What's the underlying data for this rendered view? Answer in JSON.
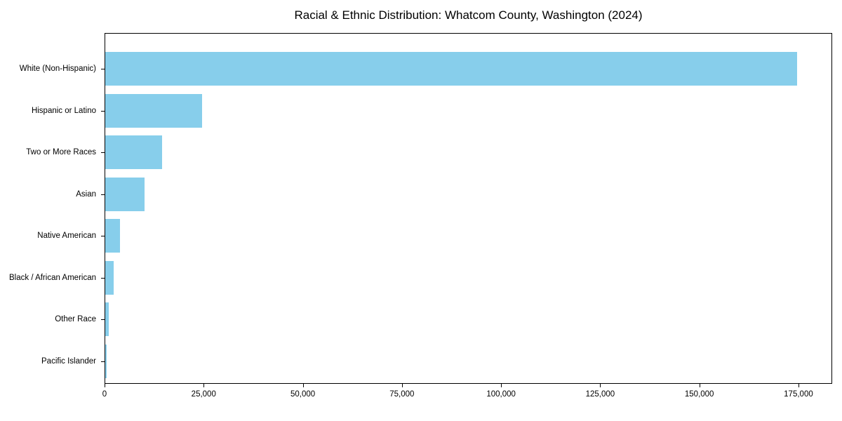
{
  "chart_data": {
    "type": "bar",
    "orientation": "horizontal",
    "title": "Racial & Ethnic Distribution: Whatcom County, Washington (2024)",
    "categories": [
      "White (Non-Hispanic)",
      "Hispanic or Latino",
      "Two or More Races",
      "Asian",
      "Native American",
      "Black / African American",
      "Other Race",
      "Pacific Islander"
    ],
    "values": [
      174500,
      24400,
      14300,
      9900,
      3700,
      2100,
      900,
      400
    ],
    "bar_color": "#87CEEB",
    "xlabel": "",
    "ylabel": "",
    "xlim": [
      0,
      183500
    ],
    "x_ticks": [
      0,
      25000,
      50000,
      75000,
      100000,
      125000,
      150000,
      175000
    ],
    "x_tick_labels": [
      "0",
      "25,000",
      "50,000",
      "75,000",
      "100,000",
      "125,000",
      "150,000",
      "175,000"
    ],
    "grid": false,
    "legend": "none",
    "background_color": "#ffffff",
    "text_color": "#000000"
  }
}
